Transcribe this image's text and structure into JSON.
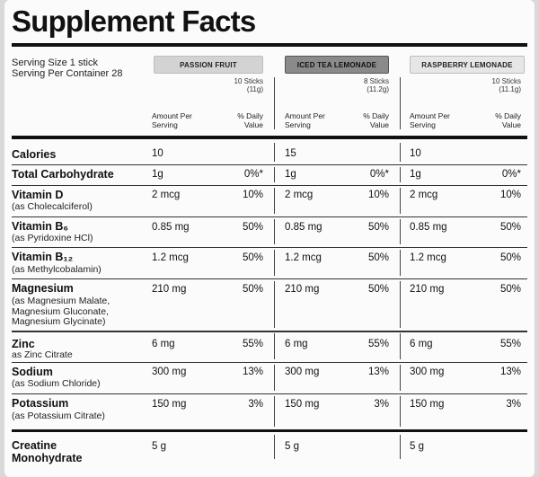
{
  "title": "Supplement Facts",
  "serving": {
    "size": "Serving Size 1 stick",
    "per_container": "Serving Per Container 28"
  },
  "flavors": [
    {
      "name": "PASSION FRUIT",
      "sticks": "10 Sticks",
      "weight": "(11g)",
      "pill_color": "#d3d3d3"
    },
    {
      "name": "ICED TEA LEMONADE",
      "sticks": "8 Sticks",
      "weight": "(11.2g)",
      "pill_color": "#8a8a8a"
    },
    {
      "name": "RASPBERRY LEMONADE",
      "sticks": "10 Sticks",
      "weight": "(11.1g)",
      "pill_color": "#e6e6e6"
    }
  ],
  "column_headers": {
    "amount": "Amount Per Serving",
    "daily_value": "% Daily Value"
  },
  "nutrients": [
    {
      "name": "Calories",
      "sub": "",
      "amounts": [
        "10",
        "15",
        "10"
      ],
      "dv": [
        "",
        "",
        ""
      ]
    },
    {
      "name": "Total Carbohydrate",
      "sub": "",
      "amounts": [
        "1g",
        "1g",
        "1g"
      ],
      "dv": [
        "0%*",
        "0%*",
        "0%*"
      ]
    },
    {
      "name": "Vitamin D",
      "sub": "(as Cholecalciferol)",
      "amounts": [
        "2 mcg",
        "2 mcg",
        "2 mcg"
      ],
      "dv": [
        "10%",
        "10%",
        "10%"
      ]
    },
    {
      "name": "Vitamin B₆",
      "sub": "(as Pyridoxine HCl)",
      "amounts": [
        "0.85 mg",
        "0.85 mg",
        "0.85 mg"
      ],
      "dv": [
        "50%",
        "50%",
        "50%"
      ]
    },
    {
      "name": "Vitamin B₁₂",
      "sub": "(as Methylcobalamin)",
      "amounts": [
        "1.2 mcg",
        "1.2 mcg",
        "1.2 mcg"
      ],
      "dv": [
        "50%",
        "50%",
        "50%"
      ]
    },
    {
      "name": "Magnesium",
      "sub": "(as Magnesium Malate, Magnesium Gluconate, Magnesium Glycinate)",
      "amounts": [
        "210 mg",
        "210 mg",
        "210 mg"
      ],
      "dv": [
        "50%",
        "50%",
        "50%"
      ]
    },
    {
      "name": "Zinc",
      "sub": "as Zinc Citrate",
      "amounts": [
        "6 mg",
        "6 mg",
        "6 mg"
      ],
      "dv": [
        "55%",
        "55%",
        "55%"
      ]
    },
    {
      "name": "Sodium",
      "sub": "(as Sodium Chloride)",
      "amounts": [
        "300 mg",
        "300 mg",
        "300 mg"
      ],
      "dv": [
        "13%",
        "13%",
        "13%"
      ]
    },
    {
      "name": "Potassium",
      "sub": "(as Potassium Citrate)",
      "amounts": [
        "150 mg",
        "150 mg",
        "150 mg"
      ],
      "dv": [
        "3%",
        "3%",
        "3%"
      ]
    },
    {
      "name": "Creatine Monohydrate",
      "sub": "",
      "amounts": [
        "5 g",
        "5 g",
        "5 g"
      ],
      "dv": [
        "",
        "",
        ""
      ]
    }
  ]
}
